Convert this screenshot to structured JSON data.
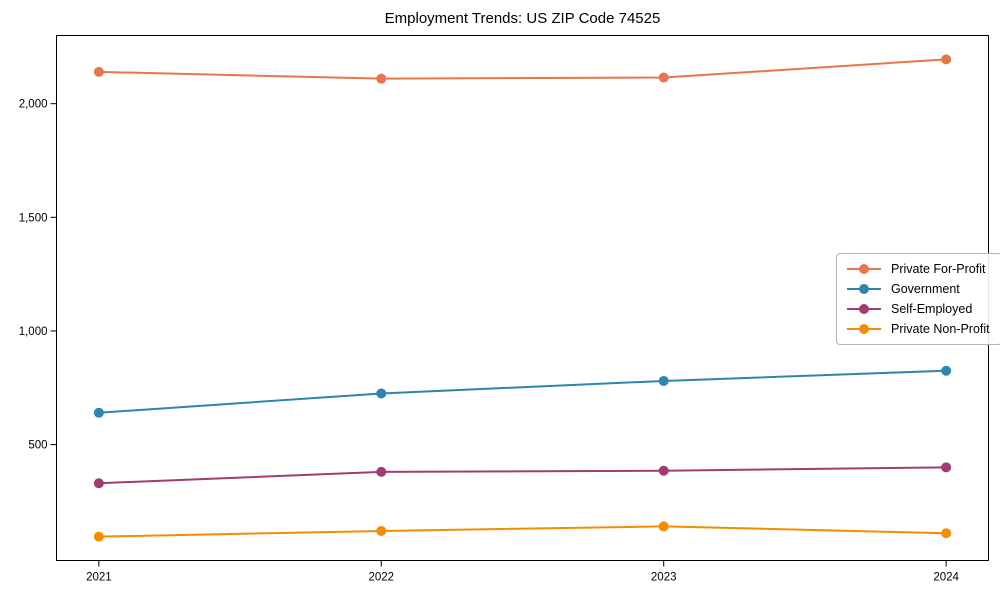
{
  "chart_data": {
    "type": "line",
    "title": "Employment Trends: US ZIP Code 74525",
    "xlabel": "",
    "ylabel": "",
    "x": [
      2021,
      2022,
      2023,
      2024
    ],
    "x_tick_labels": [
      "2021",
      "2022",
      "2023",
      "2024"
    ],
    "yticks": [
      500,
      1000,
      1500,
      2000
    ],
    "ytick_labels": [
      "500",
      "1,000",
      "1,500",
      "2,000"
    ],
    "xlim": [
      2020.85,
      2024.15
    ],
    "ylim": [
      -10,
      2300
    ],
    "grid": false,
    "legend_position": "center right",
    "marker": "circle",
    "series": [
      {
        "name": "Private For-Profit",
        "color": "#E8764B",
        "values": [
          2140,
          2110,
          2115,
          2195
        ]
      },
      {
        "name": "Government",
        "color": "#2E86AB",
        "values": [
          640,
          725,
          780,
          825
        ]
      },
      {
        "name": "Self-Employed",
        "color": "#A23B72",
        "values": [
          330,
          380,
          385,
          400
        ]
      },
      {
        "name": "Private Non-Profit",
        "color": "#F18F01",
        "values": [
          95,
          120,
          140,
          110
        ]
      }
    ]
  }
}
